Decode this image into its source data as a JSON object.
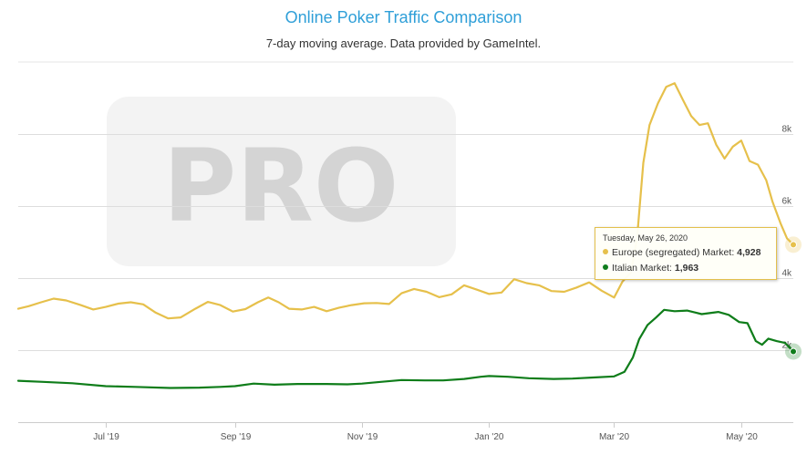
{
  "title": "Online Poker Traffic Comparison",
  "subtitle": "7-day moving average. Data provided by GameIntel.",
  "watermark": "PRO",
  "colors": {
    "europe": "#e6c04b",
    "italy": "#0f7d1a",
    "title": "#2f9fd8",
    "grid": "#dddddd"
  },
  "tooltip": {
    "date": "Tuesday, May 26, 2020",
    "rows": [
      {
        "label": "Europe (segregated) Market: ",
        "value": "4,928"
      },
      {
        "label": "Italian Market: ",
        "value": "1,963"
      }
    ]
  },
  "chart_data": {
    "type": "line",
    "title": "Online Poker Traffic Comparison",
    "subtitle": "7-day moving average. Data provided by GameIntel.",
    "grid": true,
    "xlim": [
      "2019-05-20",
      "2020-05-26"
    ],
    "ylim": [
      0,
      10000
    ],
    "x_ticks": [
      {
        "date": "2019-07-01",
        "label": "Jul '19"
      },
      {
        "date": "2019-09-01",
        "label": "Sep '19"
      },
      {
        "date": "2019-11-01",
        "label": "Nov '19"
      },
      {
        "date": "2020-01-01",
        "label": "Jan '20"
      },
      {
        "date": "2020-03-01",
        "label": "Mar '20"
      },
      {
        "date": "2020-05-01",
        "label": "May '20"
      }
    ],
    "y_ticks": [
      {
        "value": 2000,
        "label": "2k"
      },
      {
        "value": 4000,
        "label": "4k"
      },
      {
        "value": 6000,
        "label": "6k"
      },
      {
        "value": 8000,
        "label": "8k"
      }
    ],
    "series": [
      {
        "name": "Europe (segregated) Market",
        "color": "#e6c04b",
        "points": [
          [
            "2019-05-20",
            3150
          ],
          [
            "2019-05-25",
            3220
          ],
          [
            "2019-05-31",
            3330
          ],
          [
            "2019-06-06",
            3430
          ],
          [
            "2019-06-12",
            3380
          ],
          [
            "2019-06-19",
            3250
          ],
          [
            "2019-06-25",
            3130
          ],
          [
            "2019-07-01",
            3200
          ],
          [
            "2019-07-07",
            3290
          ],
          [
            "2019-07-13",
            3330
          ],
          [
            "2019-07-19",
            3270
          ],
          [
            "2019-07-25",
            3040
          ],
          [
            "2019-07-31",
            2880
          ],
          [
            "2019-08-06",
            2910
          ],
          [
            "2019-08-13",
            3150
          ],
          [
            "2019-08-19",
            3340
          ],
          [
            "2019-08-25",
            3250
          ],
          [
            "2019-08-31",
            3070
          ],
          [
            "2019-09-06",
            3140
          ],
          [
            "2019-09-12",
            3330
          ],
          [
            "2019-09-17",
            3460
          ],
          [
            "2019-09-22",
            3330
          ],
          [
            "2019-09-27",
            3150
          ],
          [
            "2019-10-03",
            3130
          ],
          [
            "2019-10-09",
            3200
          ],
          [
            "2019-10-15",
            3080
          ],
          [
            "2019-10-21",
            3180
          ],
          [
            "2019-10-27",
            3250
          ],
          [
            "2019-11-02",
            3300
          ],
          [
            "2019-11-08",
            3310
          ],
          [
            "2019-11-14",
            3280
          ],
          [
            "2019-11-20",
            3580
          ],
          [
            "2019-11-26",
            3700
          ],
          [
            "2019-12-02",
            3620
          ],
          [
            "2019-12-08",
            3470
          ],
          [
            "2019-12-14",
            3550
          ],
          [
            "2019-12-20",
            3800
          ],
          [
            "2019-12-26",
            3680
          ],
          [
            "2020-01-01",
            3560
          ],
          [
            "2020-01-07",
            3600
          ],
          [
            "2020-01-13",
            3970
          ],
          [
            "2020-01-19",
            3860
          ],
          [
            "2020-01-25",
            3800
          ],
          [
            "2020-01-31",
            3640
          ],
          [
            "2020-02-06",
            3620
          ],
          [
            "2020-02-12",
            3740
          ],
          [
            "2020-02-18",
            3880
          ],
          [
            "2020-02-24",
            3650
          ],
          [
            "2020-03-01",
            3460
          ],
          [
            "2020-03-05",
            3900
          ],
          [
            "2020-03-09",
            4150
          ],
          [
            "2020-03-12",
            5100
          ],
          [
            "2020-03-15",
            7200
          ],
          [
            "2020-03-18",
            8250
          ],
          [
            "2020-03-22",
            8850
          ],
          [
            "2020-03-26",
            9310
          ],
          [
            "2020-03-30",
            9410
          ],
          [
            "2020-04-03",
            8950
          ],
          [
            "2020-04-07",
            8500
          ],
          [
            "2020-04-11",
            8250
          ],
          [
            "2020-04-15",
            8300
          ],
          [
            "2020-04-19",
            7700
          ],
          [
            "2020-04-23",
            7320
          ],
          [
            "2020-04-27",
            7650
          ],
          [
            "2020-05-01",
            7820
          ],
          [
            "2020-05-05",
            7250
          ],
          [
            "2020-05-09",
            7150
          ],
          [
            "2020-05-13",
            6720
          ],
          [
            "2020-05-16",
            6120
          ],
          [
            "2020-05-20",
            5500
          ],
          [
            "2020-05-23",
            5100
          ],
          [
            "2020-05-26",
            4928
          ]
        ]
      },
      {
        "name": "Italian Market",
        "color": "#0f7d1a",
        "points": [
          [
            "2019-05-20",
            1150
          ],
          [
            "2019-06-01",
            1120
          ],
          [
            "2019-06-15",
            1080
          ],
          [
            "2019-07-01",
            1000
          ],
          [
            "2019-07-15",
            980
          ],
          [
            "2019-08-01",
            950
          ],
          [
            "2019-08-15",
            960
          ],
          [
            "2019-08-25",
            980
          ],
          [
            "2019-09-01",
            1000
          ],
          [
            "2019-09-10",
            1070
          ],
          [
            "2019-09-20",
            1040
          ],
          [
            "2019-10-01",
            1060
          ],
          [
            "2019-10-15",
            1060
          ],
          [
            "2019-10-25",
            1050
          ],
          [
            "2019-11-01",
            1070
          ],
          [
            "2019-11-10",
            1120
          ],
          [
            "2019-11-20",
            1170
          ],
          [
            "2019-12-01",
            1160
          ],
          [
            "2019-12-10",
            1160
          ],
          [
            "2019-12-20",
            1200
          ],
          [
            "2019-12-28",
            1260
          ],
          [
            "2020-01-01",
            1280
          ],
          [
            "2020-01-10",
            1260
          ],
          [
            "2020-01-20",
            1220
          ],
          [
            "2020-02-01",
            1200
          ],
          [
            "2020-02-10",
            1210
          ],
          [
            "2020-02-20",
            1240
          ],
          [
            "2020-03-01",
            1270
          ],
          [
            "2020-03-06",
            1400
          ],
          [
            "2020-03-10",
            1800
          ],
          [
            "2020-03-13",
            2300
          ],
          [
            "2020-03-17",
            2700
          ],
          [
            "2020-03-21",
            2900
          ],
          [
            "2020-03-25",
            3120
          ],
          [
            "2020-03-30",
            3080
          ],
          [
            "2020-04-05",
            3100
          ],
          [
            "2020-04-12",
            3000
          ],
          [
            "2020-04-20",
            3060
          ],
          [
            "2020-04-25",
            2980
          ],
          [
            "2020-04-30",
            2780
          ],
          [
            "2020-05-04",
            2750
          ],
          [
            "2020-05-08",
            2250
          ],
          [
            "2020-05-11",
            2150
          ],
          [
            "2020-05-14",
            2320
          ],
          [
            "2020-05-18",
            2250
          ],
          [
            "2020-05-22",
            2200
          ],
          [
            "2020-05-26",
            1963
          ]
        ]
      }
    ]
  }
}
